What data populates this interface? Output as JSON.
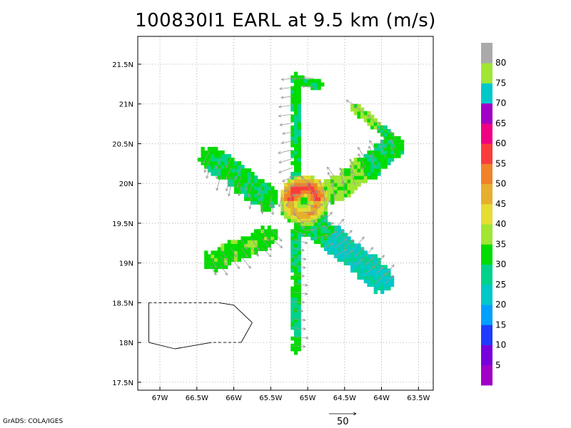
{
  "title": "100830I1 EARL at 9.5 km (m/s)",
  "credit": "GrADS: COLA/IGES",
  "reference_vector_label": "50",
  "chart_data": {
    "type": "heatmap",
    "title": "100830I1 EARL at 9.5 km (m/s)",
    "xlabel": "",
    "ylabel": "",
    "x_range": [
      -67.3,
      -63.3
    ],
    "y_range": [
      17.4,
      21.85
    ],
    "x_ticks": [
      "67W",
      "66.5W",
      "66W",
      "65.5W",
      "65W",
      "64.5W",
      "64W",
      "63.5W"
    ],
    "x_tick_values": [
      -67,
      -66.5,
      -66,
      -65.5,
      -65,
      -64.5,
      -64,
      -63.5
    ],
    "y_ticks": [
      "17.5N",
      "18N",
      "18.5N",
      "19N",
      "19.5N",
      "20N",
      "20.5N",
      "21N",
      "21.5N"
    ],
    "y_tick_values": [
      17.5,
      18,
      18.5,
      19,
      19.5,
      20,
      20.5,
      21,
      21.5
    ],
    "grid": true,
    "colorbar": {
      "labels": [
        "5",
        "10",
        "15",
        "20",
        "25",
        "30",
        "35",
        "40",
        "45",
        "50",
        "55",
        "60",
        "65",
        "70",
        "75",
        "80"
      ],
      "colors": [
        "#a000c8",
        "#7800dc",
        "#1e3cff",
        "#00a0ff",
        "#00c8c8",
        "#00d28c",
        "#00dc00",
        "#a0e632",
        "#e6dc32",
        "#e6af2d",
        "#f08228",
        "#fa3c3c",
        "#f00082",
        "#a000c8",
        "#00c8c8",
        "#a0e632",
        "#aaaaaa"
      ]
    },
    "coastline": [
      [
        -67.15,
        18.5
      ],
      [
        -66.2,
        18.5
      ],
      [
        -66.0,
        18.47
      ],
      [
        -65.75,
        18.25
      ],
      [
        -65.9,
        18.0
      ],
      [
        -66.3,
        18.0
      ],
      [
        -66.8,
        17.92
      ],
      [
        -67.15,
        18.0
      ]
    ],
    "dashed_segments": [
      [
        0,
        1
      ],
      [
        4,
        5
      ]
    ],
    "legs": [
      {
        "from": [
          -65.15,
          21.32
        ],
        "to": [
          -65.15,
          17.92
        ],
        "width": 0.12
      },
      {
        "from": [
          -66.3,
          20.32
        ],
        "to": [
          -65.55,
          19.82
        ],
        "width": 0.3
      },
      {
        "from": [
          -66.28,
          19.03
        ],
        "to": [
          -65.55,
          19.33
        ],
        "width": 0.25
      },
      {
        "from": [
          -65.02,
          19.55
        ],
        "to": [
          -64.0,
          18.8
        ],
        "width": 0.32
      },
      {
        "from": [
          -64.65,
          19.9
        ],
        "to": [
          -63.85,
          20.45
        ],
        "width": 0.3
      },
      {
        "from": [
          -64.35,
          20.95
        ],
        "to": [
          -63.75,
          20.5
        ],
        "width": 0.12
      },
      {
        "from": [
          -65.15,
          21.3
        ],
        "to": [
          -64.85,
          21.25
        ],
        "width": 0.12
      }
    ],
    "eyewall": {
      "center": [
        -65.05,
        19.78
      ],
      "radius": 0.32,
      "max_value": 55
    }
  }
}
